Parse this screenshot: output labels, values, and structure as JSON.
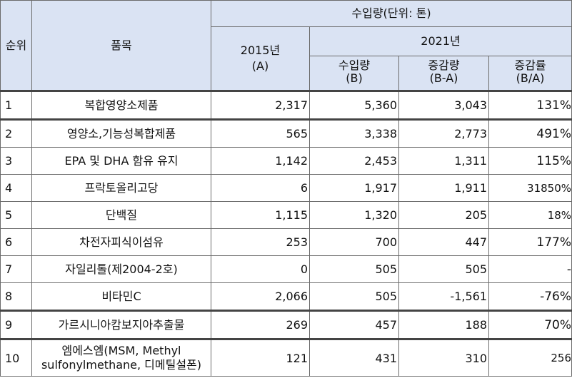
{
  "header": {
    "rank": "순위",
    "item": "품목",
    "import_volume": "수입량(단위: 톤)",
    "year2015_line1": "2015년",
    "year2015_line2": "(A)",
    "year2021": "2021년",
    "b_line1": "수입량",
    "b_line2": "(B)",
    "diff_line1": "증감량",
    "diff_line2": "(B-A)",
    "rate_line1": "증감률",
    "rate_line2": "(B/A)"
  },
  "rows": [
    {
      "rank": "1",
      "item": "복합영양소제품",
      "a": "2,317",
      "b": "5,360",
      "diff": "3,043",
      "rate": "131%"
    },
    {
      "rank": "2",
      "item": "영양소,기능성복합제품",
      "a": "565",
      "b": "3,338",
      "diff": "2,773",
      "rate": "491%"
    },
    {
      "rank": "3",
      "item": "EPA 및 DHA 함유 유지",
      "a": "1,142",
      "b": "2,453",
      "diff": "1,311",
      "rate": "115%"
    },
    {
      "rank": "4",
      "item": "프락토올리고당",
      "a": "6",
      "b": "1,917",
      "diff": "1,911",
      "rate": "31850%"
    },
    {
      "rank": "5",
      "item": "단백질",
      "a": "1,115",
      "b": "1,320",
      "diff": "205",
      "rate": "18%"
    },
    {
      "rank": "6",
      "item": "차전자피식이섬유",
      "a": "253",
      "b": "700",
      "diff": "447",
      "rate": "177%"
    },
    {
      "rank": "7",
      "item": "자일리톨(제2004-2호)",
      "a": "0",
      "b": "505",
      "diff": "505",
      "rate": "-"
    },
    {
      "rank": "8",
      "item": "비타민C",
      "a": "2,066",
      "b": "505",
      "diff": "-1,561",
      "rate": "-76%"
    },
    {
      "rank": "9",
      "item": "가르시니아캄보지아추출물",
      "a": "269",
      "b": "457",
      "diff": "188",
      "rate": "70%"
    },
    {
      "rank": "10",
      "item_line1": "엠에스엠(MSM, Methyl",
      "item_line2": "sulfonylmethane, 디메틸설폰)",
      "a": "121",
      "b": "431",
      "diff": "310",
      "rate": "256"
    }
  ]
}
